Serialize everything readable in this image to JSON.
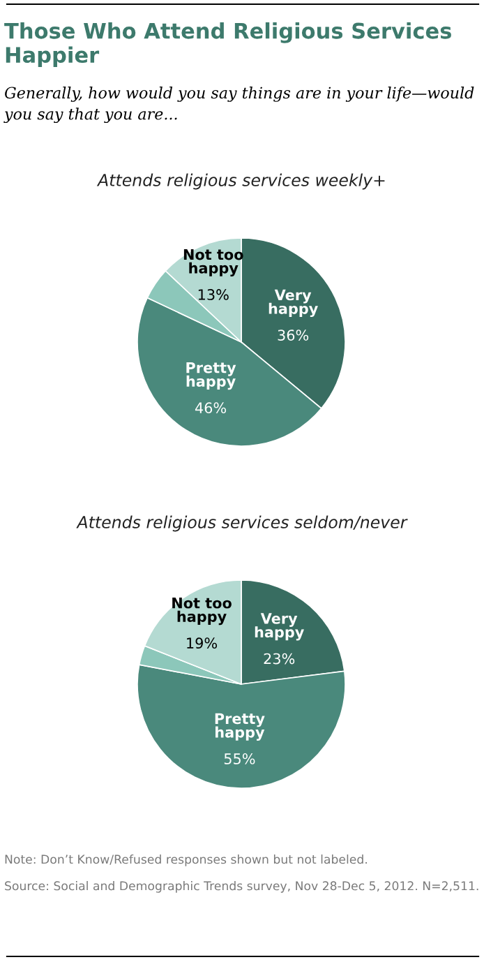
{
  "chart_data": [
    {
      "type": "pie",
      "title": "Attends religious services weekly+",
      "categories": [
        "Very happy",
        "Pretty happy",
        null,
        "Not too happy"
      ],
      "values": [
        36,
        46,
        5,
        13
      ],
      "value_labels": [
        "36%",
        "46%",
        null,
        "13%"
      ],
      "colors": [
        "#386d61",
        "#4a897c",
        "#8cc7ba",
        "#b4dad2"
      ],
      "annotations": [
        "Those Who Attend Religious Services Happier",
        "Generally, how would you say things are in your life—would you say that you are..."
      ]
    },
    {
      "type": "pie",
      "title": "Attends religious services seldom/never",
      "categories": [
        "Very happy",
        "Pretty happy",
        null,
        "Not too happy"
      ],
      "values": [
        23,
        55,
        3,
        19
      ],
      "value_labels": [
        "23%",
        "55%",
        null,
        "19%"
      ],
      "colors": [
        "#386d61",
        "#4a897c",
        "#8cc7ba",
        "#b4dad2"
      ],
      "annotations": [
        "Note: Don’t Know/Refused responses shown but not labeled.",
        "Source: Social and Demographic Trends survey, Nov 28-Dec 5, 2012. N=2,511."
      ]
    }
  ]
}
